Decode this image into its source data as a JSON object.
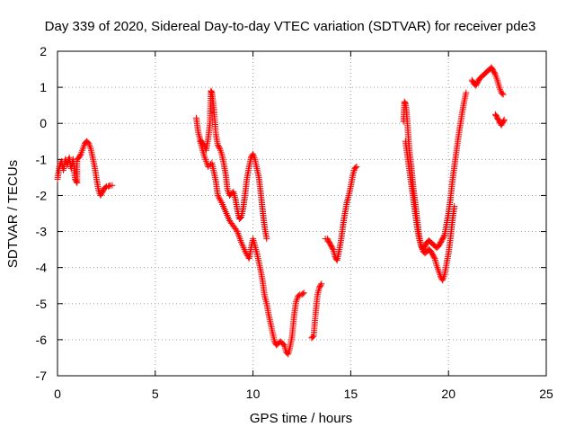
{
  "chart_data": {
    "type": "scatter",
    "title": "Day 339 of 2020, Sidereal Day-to-day VTEC variation (SDTVAR) for receiver pde3",
    "xlabel": "GPS time / hours",
    "ylabel": "SDTVAR / TECUs",
    "xlim": [
      0,
      25
    ],
    "ylim": [
      -7,
      2
    ],
    "xticks": [
      0,
      5,
      10,
      15,
      20,
      25
    ],
    "yticks": [
      2,
      1,
      0,
      -1,
      -2,
      -3,
      -4,
      -5,
      -6,
      -7
    ],
    "xtick_labels": [
      "0",
      "5",
      "10",
      "15",
      "20",
      "25"
    ],
    "ytick_labels": [
      "2",
      "1",
      "0",
      "-1",
      "-2",
      "-3",
      "-4",
      "-5",
      "-6",
      "-7"
    ],
    "grid": true,
    "marker": "+",
    "color": "#ff0000",
    "series": [
      {
        "segments": [
          [
            [
              0.0,
              -1.55
            ],
            [
              0.1,
              -1.2
            ],
            [
              0.2,
              -1.05
            ],
            [
              0.3,
              -1.3
            ],
            [
              0.4,
              -1.0
            ],
            [
              0.5,
              -1.15
            ],
            [
              0.6,
              -0.95
            ],
            [
              0.7,
              -1.25
            ],
            [
              0.8,
              -1.0
            ],
            [
              0.9,
              -1.55
            ],
            [
              1.0,
              -1.65
            ],
            [
              1.0,
              -1.0
            ],
            [
              1.1,
              -0.95
            ],
            [
              1.2,
              -0.85
            ],
            [
              1.3,
              -0.7
            ],
            [
              1.4,
              -0.55
            ],
            [
              1.5,
              -0.5
            ],
            [
              1.6,
              -0.55
            ],
            [
              1.7,
              -0.7
            ],
            [
              1.8,
              -0.95
            ],
            [
              1.9,
              -1.2
            ],
            [
              2.0,
              -1.55
            ],
            [
              2.1,
              -1.85
            ],
            [
              2.2,
              -2.0
            ],
            [
              2.3,
              -1.9
            ],
            [
              2.4,
              -1.8
            ],
            [
              2.5,
              -1.75
            ],
            [
              2.6,
              -1.75
            ],
            [
              2.7,
              -1.72
            ],
            [
              2.8,
              -1.72
            ]
          ],
          [
            [
              7.1,
              0.15
            ],
            [
              7.2,
              -0.25
            ],
            [
              7.3,
              -0.45
            ],
            [
              7.4,
              -0.55
            ],
            [
              7.5,
              -0.6
            ],
            [
              7.6,
              -0.75
            ],
            [
              7.7,
              -0.45
            ],
            [
              7.8,
              0.0
            ],
            [
              7.85,
              0.9
            ],
            [
              7.9,
              0.85
            ],
            [
              8.0,
              0.4
            ],
            [
              8.1,
              -0.3
            ],
            [
              8.2,
              -0.6
            ],
            [
              8.3,
              -0.7
            ],
            [
              8.4,
              -0.85
            ],
            [
              8.5,
              -1.1
            ],
            [
              8.6,
              -1.4
            ],
            [
              8.7,
              -1.85
            ],
            [
              8.8,
              -2.0
            ],
            [
              8.9,
              -1.95
            ],
            [
              9.0,
              -1.9
            ],
            [
              9.1,
              -2.1
            ],
            [
              9.2,
              -2.4
            ],
            [
              9.3,
              -2.65
            ],
            [
              9.4,
              -2.6
            ],
            [
              9.5,
              -2.35
            ],
            [
              9.6,
              -1.95
            ],
            [
              9.7,
              -1.5
            ],
            [
              9.8,
              -1.2
            ],
            [
              9.9,
              -0.95
            ],
            [
              10.0,
              -0.85
            ],
            [
              10.1,
              -1.0
            ],
            [
              10.2,
              -1.25
            ],
            [
              10.3,
              -1.5
            ],
            [
              10.4,
              -1.95
            ],
            [
              10.5,
              -2.45
            ],
            [
              10.6,
              -2.9
            ],
            [
              10.7,
              -3.2
            ]
          ],
          [
            [
              7.3,
              -0.5
            ],
            [
              7.5,
              -0.9
            ],
            [
              7.7,
              -1.2
            ],
            [
              7.9,
              -1.1
            ],
            [
              8.1,
              -1.6
            ],
            [
              8.2,
              -2.0
            ],
            [
              8.4,
              -2.2
            ],
            [
              8.6,
              -2.45
            ],
            [
              8.8,
              -2.7
            ],
            [
              9.0,
              -2.85
            ],
            [
              9.2,
              -3.0
            ],
            [
              9.4,
              -3.3
            ],
            [
              9.6,
              -3.55
            ],
            [
              9.8,
              -3.75
            ],
            [
              9.9,
              -3.45
            ],
            [
              10.0,
              -3.2
            ],
            [
              10.1,
              -3.4
            ],
            [
              10.2,
              -3.6
            ],
            [
              10.3,
              -3.85
            ],
            [
              10.4,
              -4.1
            ],
            [
              10.5,
              -4.4
            ],
            [
              10.6,
              -4.8
            ],
            [
              10.7,
              -5.0
            ],
            [
              10.8,
              -5.3
            ],
            [
              10.9,
              -5.55
            ],
            [
              11.0,
              -5.8
            ],
            [
              11.1,
              -6.05
            ],
            [
              11.2,
              -6.15
            ],
            [
              11.3,
              -6.1
            ],
            [
              11.4,
              -6.05
            ],
            [
              11.5,
              -6.1
            ],
            [
              11.6,
              -6.15
            ],
            [
              11.7,
              -6.35
            ],
            [
              11.8,
              -6.4
            ],
            [
              11.9,
              -6.2
            ],
            [
              12.0,
              -5.9
            ],
            [
              12.1,
              -5.35
            ],
            [
              12.2,
              -4.95
            ],
            [
              12.3,
              -4.8
            ],
            [
              12.4,
              -4.75
            ],
            [
              12.5,
              -4.75
            ],
            [
              12.6,
              -4.7
            ]
          ],
          [
            [
              13.0,
              -5.95
            ],
            [
              13.1,
              -5.9
            ],
            [
              13.2,
              -5.3
            ],
            [
              13.3,
              -4.75
            ],
            [
              13.4,
              -4.55
            ],
            [
              13.5,
              -4.45
            ]
          ],
          [
            [
              13.7,
              -3.2
            ],
            [
              13.8,
              -3.2
            ],
            [
              13.9,
              -3.3
            ],
            [
              14.0,
              -3.4
            ],
            [
              14.1,
              -3.5
            ],
            [
              14.2,
              -3.7
            ],
            [
              14.3,
              -3.8
            ],
            [
              14.4,
              -3.55
            ],
            [
              14.5,
              -3.25
            ],
            [
              14.6,
              -2.85
            ],
            [
              14.7,
              -2.5
            ],
            [
              14.8,
              -2.2
            ],
            [
              14.9,
              -2.0
            ],
            [
              15.0,
              -1.75
            ],
            [
              15.1,
              -1.45
            ],
            [
              15.2,
              -1.25
            ],
            [
              15.3,
              -1.2
            ]
          ],
          [
            [
              17.7,
              0.05
            ],
            [
              17.75,
              0.6
            ],
            [
              17.8,
              0.55
            ],
            [
              17.85,
              0.35
            ],
            [
              17.9,
              0.0
            ],
            [
              17.95,
              -0.4
            ],
            [
              18.0,
              -0.75
            ],
            [
              18.05,
              -1.0
            ],
            [
              18.1,
              -1.2
            ],
            [
              18.15,
              -1.5
            ],
            [
              18.2,
              -1.8
            ],
            [
              18.3,
              -2.2
            ],
            [
              18.4,
              -2.7
            ],
            [
              18.5,
              -3.1
            ],
            [
              18.6,
              -3.4
            ],
            [
              18.7,
              -3.5
            ],
            [
              18.8,
              -3.4
            ],
            [
              18.9,
              -3.3
            ],
            [
              19.0,
              -3.25
            ],
            [
              19.1,
              -3.3
            ],
            [
              19.2,
              -3.35
            ],
            [
              19.3,
              -3.4
            ],
            [
              19.4,
              -3.45
            ],
            [
              19.5,
              -3.4
            ],
            [
              19.6,
              -3.3
            ],
            [
              19.7,
              -3.2
            ],
            [
              19.8,
              -3.1
            ],
            [
              19.9,
              -2.8
            ],
            [
              20.0,
              -2.5
            ],
            [
              20.1,
              -2.1
            ],
            [
              20.2,
              -1.6
            ],
            [
              20.3,
              -1.2
            ],
            [
              20.4,
              -0.8
            ],
            [
              20.5,
              -0.4
            ],
            [
              20.6,
              -0.05
            ],
            [
              20.7,
              0.3
            ],
            [
              20.8,
              0.6
            ],
            [
              20.9,
              0.85
            ]
          ],
          [
            [
              17.8,
              -0.5
            ],
            [
              17.9,
              -0.9
            ],
            [
              18.0,
              -1.3
            ],
            [
              18.1,
              -1.7
            ],
            [
              18.2,
              -2.1
            ],
            [
              18.3,
              -2.5
            ],
            [
              18.4,
              -2.9
            ],
            [
              18.5,
              -3.2
            ],
            [
              18.6,
              -3.4
            ],
            [
              18.7,
              -3.55
            ],
            [
              18.8,
              -3.6
            ],
            [
              18.9,
              -3.55
            ],
            [
              19.0,
              -3.5
            ],
            [
              19.1,
              -3.55
            ],
            [
              19.2,
              -3.65
            ],
            [
              19.3,
              -3.75
            ],
            [
              19.4,
              -3.95
            ],
            [
              19.5,
              -4.1
            ],
            [
              19.6,
              -4.25
            ],
            [
              19.7,
              -4.35
            ],
            [
              19.8,
              -4.2
            ],
            [
              19.9,
              -3.9
            ],
            [
              20.0,
              -3.6
            ],
            [
              20.1,
              -3.2
            ],
            [
              20.2,
              -2.7
            ],
            [
              20.3,
              -2.3
            ]
          ],
          [
            [
              21.2,
              1.2
            ],
            [
              21.3,
              1.1
            ],
            [
              21.4,
              1.05
            ],
            [
              21.5,
              1.15
            ],
            [
              21.6,
              1.25
            ],
            [
              21.7,
              1.3
            ],
            [
              21.8,
              1.35
            ],
            [
              21.9,
              1.4
            ],
            [
              22.0,
              1.45
            ],
            [
              22.1,
              1.5
            ],
            [
              22.2,
              1.55
            ],
            [
              22.3,
              1.45
            ],
            [
              22.4,
              1.35
            ],
            [
              22.5,
              1.2
            ],
            [
              22.6,
              1.0
            ],
            [
              22.7,
              0.85
            ],
            [
              22.8,
              0.8
            ]
          ],
          [
            [
              22.4,
              0.25
            ],
            [
              22.5,
              0.15
            ],
            [
              22.6,
              0.05
            ],
            [
              22.7,
              -0.05
            ],
            [
              22.8,
              0.05
            ],
            [
              22.85,
              0.1
            ]
          ]
        ]
      }
    ]
  }
}
